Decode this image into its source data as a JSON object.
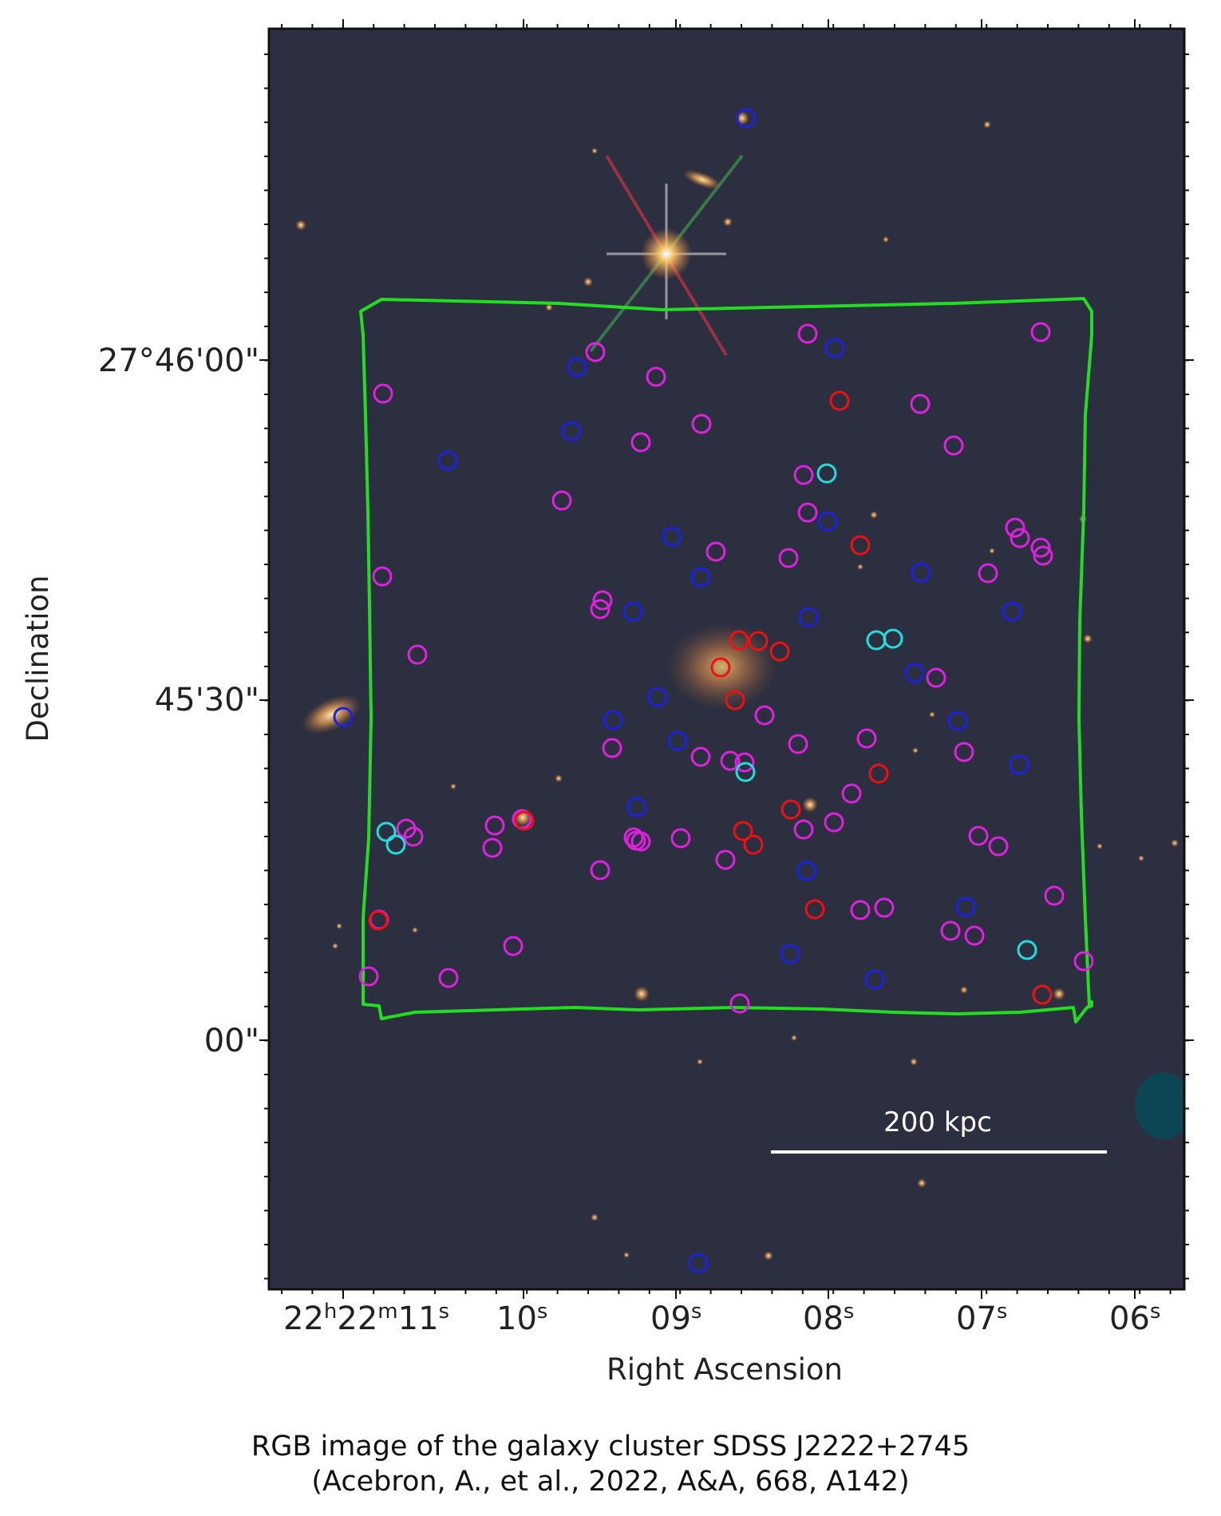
{
  "axes": {
    "xlabel": "Right Ascension",
    "ylabel": "Declination",
    "xticks": {
      "first": {
        "h": "22",
        "h_sup": "h",
        "m": "22",
        "m_sup": "m",
        "s": "11",
        "s_sup": "s"
      },
      "rest": [
        {
          "s": "10",
          "s_sup": "s"
        },
        {
          "s": "09",
          "s_sup": "s"
        },
        {
          "s": "08",
          "s_sup": "s"
        },
        {
          "s": "07",
          "s_sup": "s"
        },
        {
          "s": "06",
          "s_sup": "s"
        }
      ]
    },
    "yticks": [
      "27°46'00\"",
      "45'30\"",
      "00\""
    ]
  },
  "scale_bar": {
    "label": "200 kpc"
  },
  "caption": {
    "line1": "RGB image of the galaxy cluster SDSS J2222+2745",
    "line2": "(Acebron, A., et al., 2022, A&A, 668, A142)"
  },
  "colors": {
    "sky": "#2b2f3f",
    "footprint": "#22dd22",
    "marker_magenta": "#dd22dd",
    "marker_blue": "#1a22dd",
    "marker_red": "#ee1111",
    "marker_cyan": "#22dddd"
  }
}
